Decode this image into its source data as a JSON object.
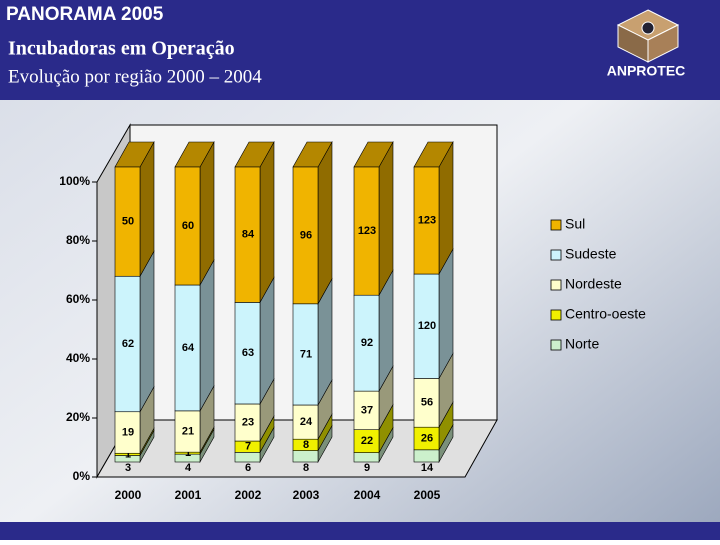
{
  "slide": {
    "header": "PANORAMA 2005",
    "title": "Incubadoras em Operação",
    "subtitle": "Evolução por região 2000 – 2004",
    "logo": "ANPROTEC"
  },
  "chart_data": {
    "type": "stacked_bar_100",
    "categories": [
      "2000",
      "2001",
      "2002",
      "2003",
      "2004",
      "2005"
    ],
    "series": [
      {
        "name": "Norte",
        "color": "#ccf0cc",
        "values": [
          3,
          4,
          6,
          8,
          9,
          14
        ]
      },
      {
        "name": "Centro-oeste",
        "color": "#f0f000",
        "values": [
          1,
          1,
          7,
          8,
          22,
          26
        ]
      },
      {
        "name": "Nordeste",
        "color": "#ffffcc",
        "values": [
          19,
          21,
          23,
          24,
          37,
          56
        ]
      },
      {
        "name": "Sudeste",
        "color": "#ccf4fc",
        "values": [
          62,
          64,
          63,
          71,
          92,
          120
        ]
      },
      {
        "name": "Sul",
        "color": "#f0b400",
        "values": [
          50,
          60,
          84,
          96,
          123,
          123
        ]
      }
    ],
    "ylim": [
      0,
      100
    ],
    "yticks": [
      {
        "value": 0,
        "label": "0%"
      },
      {
        "value": 20,
        "label": "20%"
      },
      {
        "value": 40,
        "label": "40%"
      },
      {
        "value": 60,
        "label": "60%"
      },
      {
        "value": 80,
        "label": "80%"
      },
      {
        "value": 100,
        "label": "100%"
      }
    ],
    "legend": "right"
  }
}
